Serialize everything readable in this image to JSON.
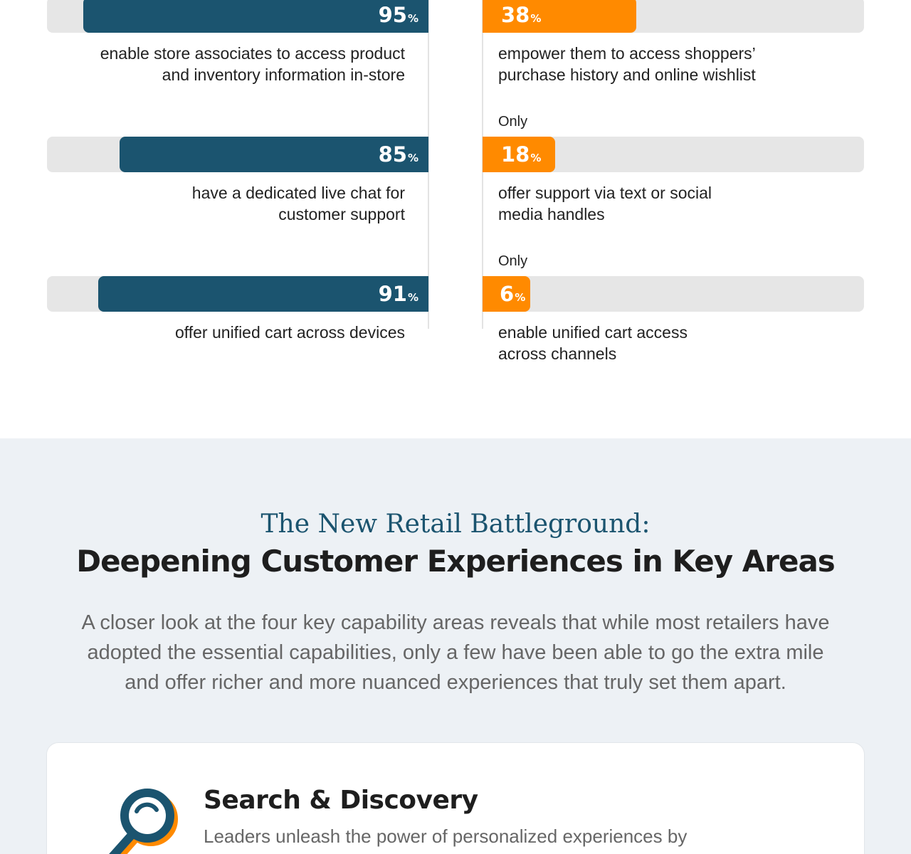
{
  "chart_data": {
    "type": "bar",
    "orientation": "horizontal",
    "xlim": [
      0,
      100
    ],
    "colors": {
      "left": "#1b546f",
      "right": "#ff8a00",
      "track": "#e6e6e6"
    },
    "rows": [
      {
        "left": {
          "value": 95,
          "unit": "%",
          "label_lines": [
            "enable store associates to access product",
            "and inventory information in-store"
          ]
        },
        "right": {
          "value": 38,
          "unit": "%",
          "prefix": "",
          "label_lines": [
            "empower them to access shoppers’",
            "purchase history and online wishlist"
          ]
        }
      },
      {
        "left": {
          "value": 85,
          "unit": "%",
          "label_lines": [
            "have a dedicated live chat for",
            "customer support"
          ]
        },
        "right": {
          "value": 18,
          "unit": "%",
          "prefix": "Only",
          "label_lines": [
            "offer support via text or social",
            "media handles"
          ]
        }
      },
      {
        "left": {
          "value": 91,
          "unit": "%",
          "label_lines": [
            "offer unified cart across devices"
          ]
        },
        "right": {
          "value": 6,
          "unit": "%",
          "prefix": "Only",
          "label_lines": [
            "enable unified cart access",
            "across channels"
          ]
        }
      }
    ]
  },
  "battleground": {
    "kicker": "The New Retail Battleground:",
    "headline": "Deepening Customer Experiences in Key Areas",
    "intro_lines": [
      "A closer look at the four key capability areas reveals that while most retailers have",
      "adopted the essential capabilities, only a few have been able to go the extra mile",
      "and offer richer and more nuanced experiences that truly set them apart."
    ],
    "card": {
      "icon": "magnifying-glass-icon",
      "title": "Search & Discovery",
      "body_lines": [
        "Leaders unleash the power of personalized experiences by"
      ]
    },
    "colors": {
      "accent": "#1b546f",
      "orange": "#ff8a00",
      "background": "#edf1f5"
    }
  }
}
